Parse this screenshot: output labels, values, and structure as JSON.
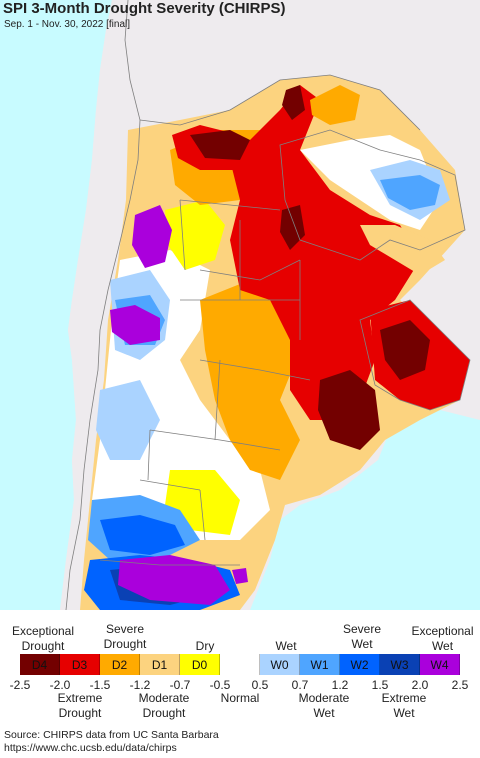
{
  "title": "SPI 3-Month Drought Severity (CHIRPS)",
  "subtitle": "Sep. 1 - Nov. 30, 2022 [final]",
  "colors": {
    "ocean": "#c8fbff",
    "outside_land": "#eeebee",
    "border": "#7f7f7f"
  },
  "legend": {
    "categories": [
      {
        "code": "D4",
        "color": "#730000"
      },
      {
        "code": "D3",
        "color": "#e60000"
      },
      {
        "code": "D2",
        "color": "#ffaa00"
      },
      {
        "code": "D1",
        "color": "#fcd37f"
      },
      {
        "code": "D0",
        "color": "#ffff00"
      },
      {
        "code": "",
        "color": "#ffffff"
      },
      {
        "code": "W0",
        "color": "#aad3ff"
      },
      {
        "code": "W1",
        "color": "#4fa5ff"
      },
      {
        "code": "W2",
        "color": "#0063ff"
      },
      {
        "code": "W3",
        "color": "#0a41b4"
      },
      {
        "code": "W4",
        "color": "#aa00dc"
      }
    ],
    "tick_values": [
      "-2.5",
      "-2.0",
      "-1.5",
      "-1.2",
      "-0.7",
      "-0.5",
      "0.5",
      "0.7",
      "1.2",
      "1.5",
      "2.0",
      "2.5"
    ],
    "top_labels": [
      "Exceptional\nDrought",
      "Severe\nDrought",
      "Dry",
      "Wet",
      "Severe\nWet",
      "Exceptional\nWet"
    ],
    "bottom_labels": [
      "Extreme\nDrought",
      "Moderate\nDrought",
      "Normal",
      "Moderate\nWet",
      "Extreme\nWet"
    ]
  },
  "source": {
    "line1": "Source: CHIRPS data from UC Santa Barbara",
    "line2": "https://www.chc.ucsb.edu/data/chirps"
  }
}
